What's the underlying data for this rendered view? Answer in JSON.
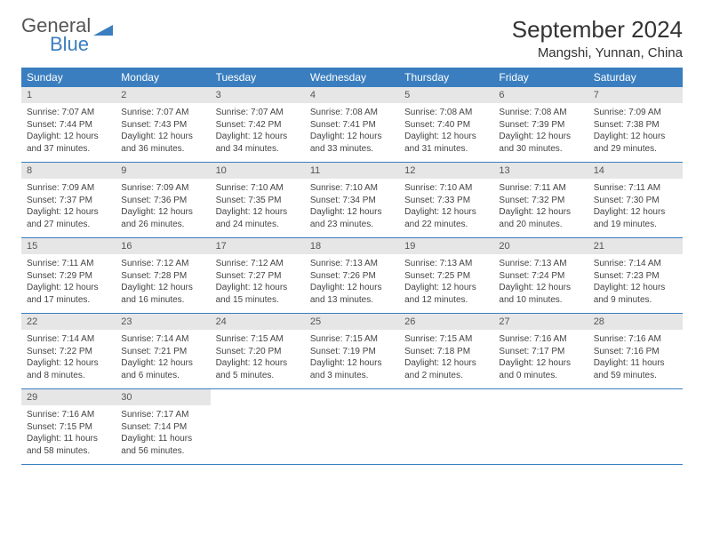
{
  "brand": {
    "part1": "General",
    "part2": "Blue"
  },
  "title": "September 2024",
  "location": "Mangshi, Yunnan, China",
  "colors": {
    "header_bg": "#3a7ebf",
    "header_text": "#ffffff",
    "daynum_bg": "#e6e6e6",
    "row_divider": "#3a7ebf",
    "body_text": "#444444",
    "page_bg": "#ffffff"
  },
  "typography": {
    "title_fontsize": 26,
    "location_fontsize": 15,
    "weekday_fontsize": 12,
    "cell_fontsize": 10
  },
  "layout": {
    "columns": 7,
    "rows": 5
  },
  "weekdays": [
    "Sunday",
    "Monday",
    "Tuesday",
    "Wednesday",
    "Thursday",
    "Friday",
    "Saturday"
  ],
  "days": [
    {
      "n": "1",
      "sr": "7:07 AM",
      "ss": "7:44 PM",
      "dl": "12 hours and 37 minutes."
    },
    {
      "n": "2",
      "sr": "7:07 AM",
      "ss": "7:43 PM",
      "dl": "12 hours and 36 minutes."
    },
    {
      "n": "3",
      "sr": "7:07 AM",
      "ss": "7:42 PM",
      "dl": "12 hours and 34 minutes."
    },
    {
      "n": "4",
      "sr": "7:08 AM",
      "ss": "7:41 PM",
      "dl": "12 hours and 33 minutes."
    },
    {
      "n": "5",
      "sr": "7:08 AM",
      "ss": "7:40 PM",
      "dl": "12 hours and 31 minutes."
    },
    {
      "n": "6",
      "sr": "7:08 AM",
      "ss": "7:39 PM",
      "dl": "12 hours and 30 minutes."
    },
    {
      "n": "7",
      "sr": "7:09 AM",
      "ss": "7:38 PM",
      "dl": "12 hours and 29 minutes."
    },
    {
      "n": "8",
      "sr": "7:09 AM",
      "ss": "7:37 PM",
      "dl": "12 hours and 27 minutes."
    },
    {
      "n": "9",
      "sr": "7:09 AM",
      "ss": "7:36 PM",
      "dl": "12 hours and 26 minutes."
    },
    {
      "n": "10",
      "sr": "7:10 AM",
      "ss": "7:35 PM",
      "dl": "12 hours and 24 minutes."
    },
    {
      "n": "11",
      "sr": "7:10 AM",
      "ss": "7:34 PM",
      "dl": "12 hours and 23 minutes."
    },
    {
      "n": "12",
      "sr": "7:10 AM",
      "ss": "7:33 PM",
      "dl": "12 hours and 22 minutes."
    },
    {
      "n": "13",
      "sr": "7:11 AM",
      "ss": "7:32 PM",
      "dl": "12 hours and 20 minutes."
    },
    {
      "n": "14",
      "sr": "7:11 AM",
      "ss": "7:30 PM",
      "dl": "12 hours and 19 minutes."
    },
    {
      "n": "15",
      "sr": "7:11 AM",
      "ss": "7:29 PM",
      "dl": "12 hours and 17 minutes."
    },
    {
      "n": "16",
      "sr": "7:12 AM",
      "ss": "7:28 PM",
      "dl": "12 hours and 16 minutes."
    },
    {
      "n": "17",
      "sr": "7:12 AM",
      "ss": "7:27 PM",
      "dl": "12 hours and 15 minutes."
    },
    {
      "n": "18",
      "sr": "7:13 AM",
      "ss": "7:26 PM",
      "dl": "12 hours and 13 minutes."
    },
    {
      "n": "19",
      "sr": "7:13 AM",
      "ss": "7:25 PM",
      "dl": "12 hours and 12 minutes."
    },
    {
      "n": "20",
      "sr": "7:13 AM",
      "ss": "7:24 PM",
      "dl": "12 hours and 10 minutes."
    },
    {
      "n": "21",
      "sr": "7:14 AM",
      "ss": "7:23 PM",
      "dl": "12 hours and 9 minutes."
    },
    {
      "n": "22",
      "sr": "7:14 AM",
      "ss": "7:22 PM",
      "dl": "12 hours and 8 minutes."
    },
    {
      "n": "23",
      "sr": "7:14 AM",
      "ss": "7:21 PM",
      "dl": "12 hours and 6 minutes."
    },
    {
      "n": "24",
      "sr": "7:15 AM",
      "ss": "7:20 PM",
      "dl": "12 hours and 5 minutes."
    },
    {
      "n": "25",
      "sr": "7:15 AM",
      "ss": "7:19 PM",
      "dl": "12 hours and 3 minutes."
    },
    {
      "n": "26",
      "sr": "7:15 AM",
      "ss": "7:18 PM",
      "dl": "12 hours and 2 minutes."
    },
    {
      "n": "27",
      "sr": "7:16 AM",
      "ss": "7:17 PM",
      "dl": "12 hours and 0 minutes."
    },
    {
      "n": "28",
      "sr": "7:16 AM",
      "ss": "7:16 PM",
      "dl": "11 hours and 59 minutes."
    },
    {
      "n": "29",
      "sr": "7:16 AM",
      "ss": "7:15 PM",
      "dl": "11 hours and 58 minutes."
    },
    {
      "n": "30",
      "sr": "7:17 AM",
      "ss": "7:14 PM",
      "dl": "11 hours and 56 minutes."
    }
  ],
  "labels": {
    "sunrise": "Sunrise:",
    "sunset": "Sunset:",
    "daylight": "Daylight:"
  }
}
